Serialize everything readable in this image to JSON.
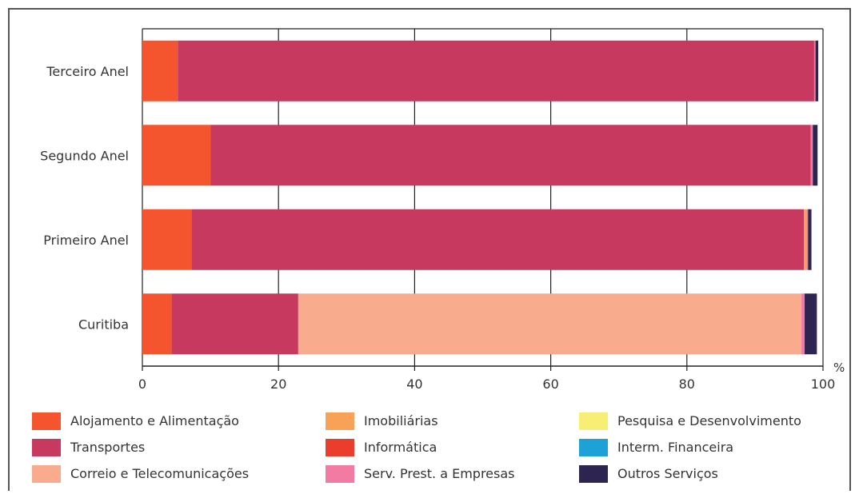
{
  "chart_data": {
    "type": "bar",
    "orientation": "horizontal",
    "stacked": true,
    "categories": [
      "Terceiro Anel",
      "Segundo Anel",
      "Primeiro Anel",
      "Curitiba"
    ],
    "x_ticks": [
      "0",
      "20",
      "40",
      "60",
      "80",
      "100"
    ],
    "xlim": [
      0,
      100
    ],
    "x_unit": "%",
    "grid": true,
    "legend_position": "bottom",
    "series": [
      {
        "name": "Alojamento e Alimentação",
        "color": "#f4552e",
        "values": [
          5.2,
          10.0,
          7.2,
          4.3
        ]
      },
      {
        "name": "Transportes",
        "color": "#c7395e",
        "values": [
          93.5,
          88.2,
          90.0,
          18.6
        ]
      },
      {
        "name": "Correio e Telecomunicações",
        "color": "#f9ab8e",
        "values": [
          0,
          0,
          0,
          73.9
        ]
      },
      {
        "name": "Imobiliárias",
        "color": "#f7a257",
        "values": [
          0,
          0,
          0.4,
          0
        ]
      },
      {
        "name": "Informática",
        "color": "#ea3d2c",
        "values": [
          0,
          0,
          0,
          0
        ]
      },
      {
        "name": "Serv. Prest. a Empresas",
        "color": "#f27ba3",
        "values": [
          0.2,
          0.3,
          0.2,
          0.5
        ]
      },
      {
        "name": "Pesquisa e Desenvolvimento",
        "color": "#f7ee74",
        "values": [
          0,
          0,
          0,
          0
        ]
      },
      {
        "name": "Interm. Financeira",
        "color": "#1ea1d6",
        "values": [
          0,
          0,
          0,
          0
        ]
      },
      {
        "name": "Outros Serviços",
        "color": "#2d2550",
        "values": [
          0.4,
          0.7,
          0.5,
          1.8
        ]
      }
    ],
    "stack_order_note": ""
  }
}
